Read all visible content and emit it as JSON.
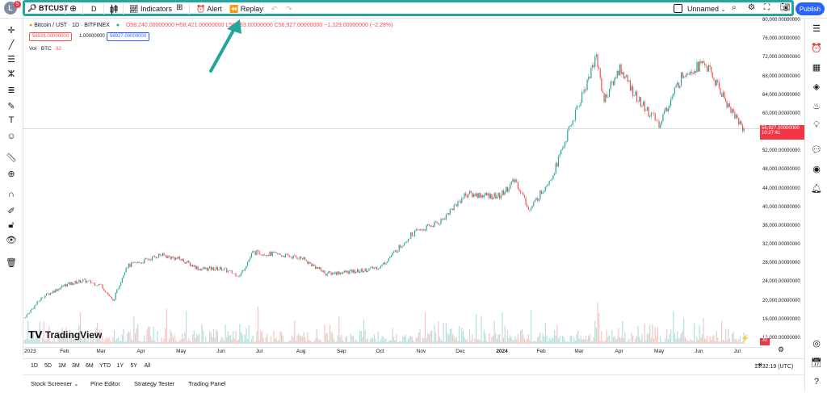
{
  "toolbar": {
    "symbol": "BTCUST",
    "interval": "D",
    "indicators_label": "Indicators",
    "alert_label": "Alert",
    "replay_label": "Replay",
    "layout_name": "Unnamed",
    "publish_label": "Publish",
    "notification_count": "5",
    "logo_letter": "L"
  },
  "legend": {
    "title": "Bitcoin / UST · 1D · BITFINEX",
    "ohlc": "O58,240.00000000 H58,421.00000000 L56,853.00000000 C56,927.00000000 −1,329.00000000 (−2.28%)",
    "bid": "56926.00000000",
    "spread": "1.00000000",
    "ask": "56927.00000000",
    "volume_label": "Vol · BTC",
    "volume_value": "32"
  },
  "price_axis": {
    "labels": [
      "80,000.00000000",
      "76,000.00000000",
      "72,000.00000000",
      "68,000.00000000",
      "64,000.00000000",
      "60,000.00000000",
      "56,000.00000000",
      "52,000.00000000",
      "48,000.00000000",
      "44,000.00000000",
      "40,000.00000000",
      "36,000.00000000",
      "32,000.00000000",
      "28,000.00000000",
      "24,000.00000000",
      "20,000.00000000",
      "16,000.00000000",
      "12,000.00000000"
    ],
    "last_price": "56,927.00000000",
    "countdown": "10:27:41",
    "volume_tag": "32"
  },
  "time_axis": {
    "labels": [
      "2023",
      "Feb",
      "Mar",
      "Apr",
      "May",
      "Jun",
      "Jul",
      "Aug",
      "Sep",
      "Oct",
      "Nov",
      "Dec",
      "2024",
      "Feb",
      "Mar",
      "Apr",
      "May",
      "Jun",
      "Jul"
    ]
  },
  "timeframes": [
    "1D",
    "5D",
    "1M",
    "3M",
    "6M",
    "YTD",
    "1Y",
    "5Y",
    "All"
  ],
  "clock": "13:32:19 (UTC)",
  "bottom_panel": {
    "stock_screener": "Stock Screener",
    "pine_editor": "Pine Editor",
    "strategy_tester": "Strategy Tester",
    "trading_panel": "Trading Panel"
  },
  "watermark": "TradingView",
  "colors": {
    "up": "#26a69a",
    "down": "#ef5350",
    "accent": "#2962ff",
    "highlight": "#26a69a",
    "last_price_bg": "#f23645"
  },
  "chart_data": {
    "type": "candlestick",
    "x_range": [
      "2023-01",
      "2024-07"
    ],
    "ylim": [
      12000,
      80000
    ],
    "approx_close_path": [
      {
        "x": "2023-01-01",
        "y": 16500
      },
      {
        "x": "2023-01-15",
        "y": 21000
      },
      {
        "x": "2023-02-01",
        "y": 23500
      },
      {
        "x": "2023-02-15",
        "y": 24500
      },
      {
        "x": "2023-03-01",
        "y": 23500
      },
      {
        "x": "2023-03-10",
        "y": 20000
      },
      {
        "x": "2023-03-20",
        "y": 27500
      },
      {
        "x": "2023-04-01",
        "y": 28500
      },
      {
        "x": "2023-04-15",
        "y": 30000
      },
      {
        "x": "2023-05-01",
        "y": 29000
      },
      {
        "x": "2023-05-15",
        "y": 27000
      },
      {
        "x": "2023-06-01",
        "y": 27000
      },
      {
        "x": "2023-06-15",
        "y": 25500
      },
      {
        "x": "2023-06-25",
        "y": 30500
      },
      {
        "x": "2023-07-15",
        "y": 30000
      },
      {
        "x": "2023-08-01",
        "y": 29300
      },
      {
        "x": "2023-08-20",
        "y": 26000
      },
      {
        "x": "2023-09-15",
        "y": 26500
      },
      {
        "x": "2023-10-01",
        "y": 27500
      },
      {
        "x": "2023-10-25",
        "y": 34500
      },
      {
        "x": "2023-11-15",
        "y": 37000
      },
      {
        "x": "2023-12-05",
        "y": 43000
      },
      {
        "x": "2023-12-31",
        "y": 42500
      },
      {
        "x": "2024-01-12",
        "y": 46000
      },
      {
        "x": "2024-01-23",
        "y": 39500
      },
      {
        "x": "2024-02-10",
        "y": 47500
      },
      {
        "x": "2024-02-28",
        "y": 61000
      },
      {
        "x": "2024-03-14",
        "y": 72500
      },
      {
        "x": "2024-03-20",
        "y": 63000
      },
      {
        "x": "2024-04-01",
        "y": 70000
      },
      {
        "x": "2024-04-15",
        "y": 63000
      },
      {
        "x": "2024-05-01",
        "y": 58000
      },
      {
        "x": "2024-05-20",
        "y": 69000
      },
      {
        "x": "2024-06-05",
        "y": 71000
      },
      {
        "x": "2024-06-25",
        "y": 61000
      },
      {
        "x": "2024-07-05",
        "y": 56927
      }
    ]
  }
}
